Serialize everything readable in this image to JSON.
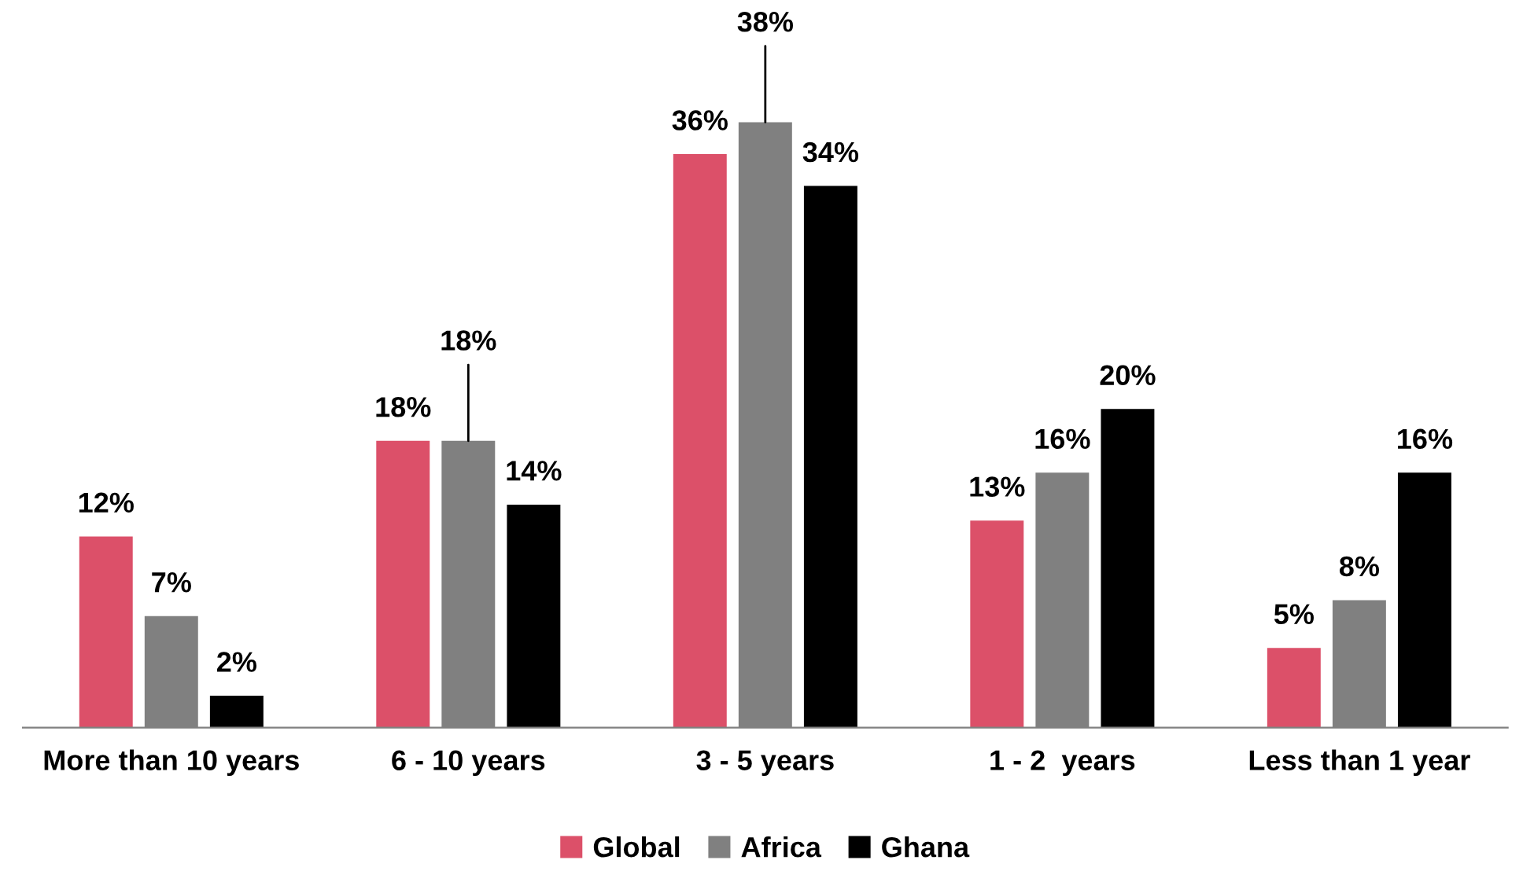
{
  "chart_data": {
    "type": "bar",
    "categories": [
      "More than 10 years",
      "6 - 10 years",
      "3 - 5 years",
      "1 - 2  years",
      "Less than 1 year"
    ],
    "series": [
      {
        "name": "Global",
        "color": "#dc5069",
        "values": [
          12,
          18,
          36,
          13,
          5
        ],
        "value_labels": [
          "12%",
          "18%",
          "36%",
          "13%",
          "5%"
        ]
      },
      {
        "name": "Africa",
        "color": "#808080",
        "values": [
          7,
          18,
          38,
          16,
          8
        ],
        "value_labels": [
          "7%",
          "18%",
          "38%",
          "16%",
          "8%"
        ]
      },
      {
        "name": "Ghana",
        "color": "#000000",
        "values": [
          2,
          14,
          34,
          20,
          16
        ],
        "value_labels": [
          "2%",
          "14%",
          "34%",
          "20%",
          "16%"
        ]
      }
    ],
    "grid": false,
    "legend": "bottom"
  }
}
